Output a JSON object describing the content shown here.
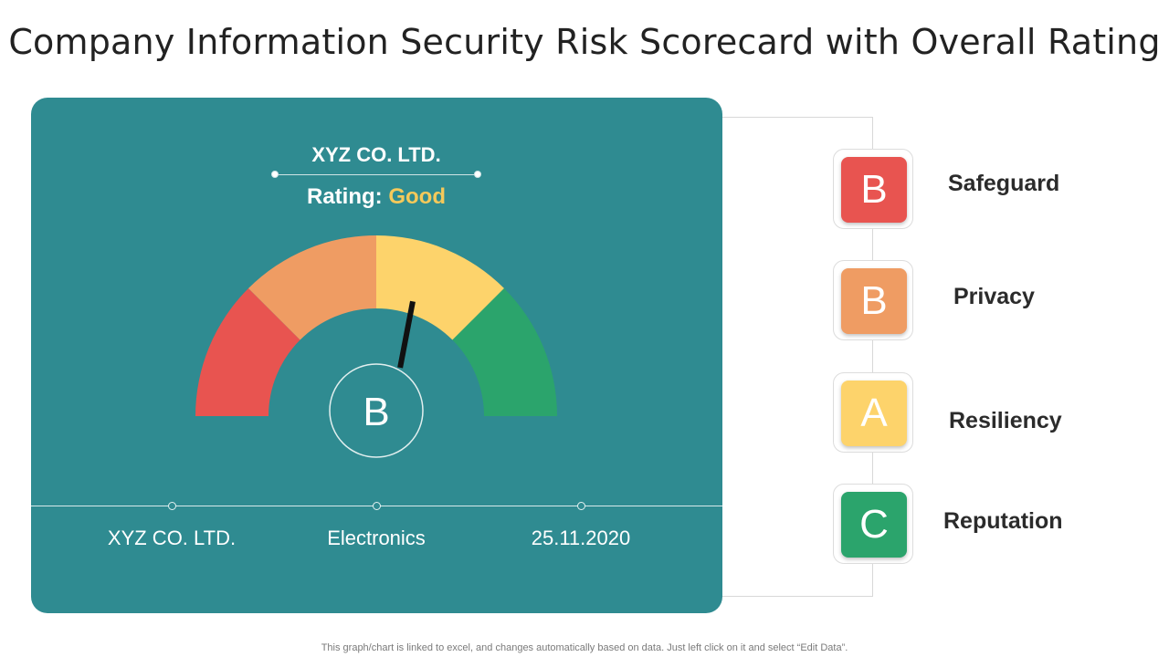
{
  "title": "Company Information Security Risk Scorecard with Overall Rating",
  "panel": {
    "company": "XYZ CO. LTD.",
    "rating_label": "Rating:",
    "rating_value": "Good",
    "overall_grade": "B",
    "gauge_level": 0.56,
    "gauge_colors": [
      "#e85450",
      "#ef9c63",
      "#fdd36b",
      "#2ba46c"
    ],
    "info": [
      "XYZ CO. LTD.",
      "Electronics",
      "25.11.2020"
    ]
  },
  "categories": [
    {
      "grade": "B",
      "label": "Safeguard",
      "color": "#e85450"
    },
    {
      "grade": "B",
      "label": "Privacy",
      "color": "#ef9c63"
    },
    {
      "grade": "A",
      "label": "Resiliency",
      "color": "#fdd36b"
    },
    {
      "grade": "C",
      "label": "Reputation",
      "color": "#2ba46c"
    }
  ],
  "footnote": "This graph/chart is linked to excel, and changes automatically based on data. Just left click on it and select “Edit Data”."
}
